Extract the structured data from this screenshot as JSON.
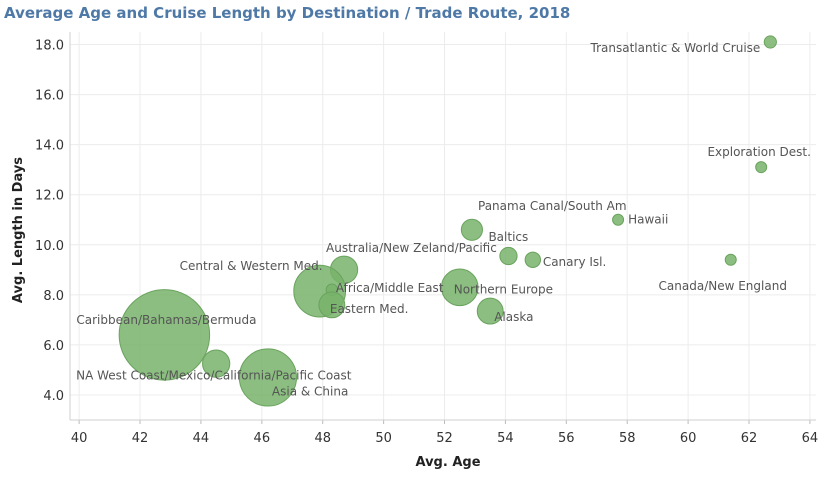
{
  "chart_data": {
    "type": "scatter",
    "title": "Average Age and Cruise Length by Destination / Trade Route, 2018",
    "xlabel": "Avg. Age",
    "ylabel": "Avg. Length in Days",
    "xlim": [
      39.7,
      64.2
    ],
    "ylim": [
      3.0,
      18.5
    ],
    "x_ticks": [
      40,
      42,
      44,
      46,
      48,
      50,
      52,
      54,
      56,
      58,
      60,
      62,
      64
    ],
    "y_ticks": [
      4.0,
      6.0,
      8.0,
      10.0,
      12.0,
      14.0,
      16.0,
      18.0
    ],
    "grid": true,
    "marker_color": "#77b36a",
    "points": [
      {
        "label": "Transatlantic & World Cruise",
        "x": 62.7,
        "y": 18.1,
        "size": 1.0
      },
      {
        "label": "Exploration Dest.",
        "x": 62.4,
        "y": 13.1,
        "size": 0.6
      },
      {
        "label": "Hawaii",
        "x": 57.7,
        "y": 11.0,
        "size": 0.8
      },
      {
        "label": "Panama Canal/South Am",
        "x": 52.9,
        "y": 10.6,
        "size": 3.0
      },
      {
        "label": "Baltics",
        "x": 54.1,
        "y": 9.55,
        "size": 2.0
      },
      {
        "label": "Canary Isl.",
        "x": 54.9,
        "y": 9.4,
        "size": 1.6
      },
      {
        "label": "Canada/New England",
        "x": 61.4,
        "y": 9.4,
        "size": 0.8
      },
      {
        "label": "Australia/New Zeland/Pacific",
        "x": 48.7,
        "y": 9.0,
        "size": 5.0
      },
      {
        "label": "Central & Western Med.",
        "x": 47.9,
        "y": 8.15,
        "size": 18.0
      },
      {
        "label": "Africa/Middle East",
        "x": 48.3,
        "y": 8.2,
        "size": 0.9
      },
      {
        "label": "Northern Europe",
        "x": 52.5,
        "y": 8.3,
        "size": 9.0
      },
      {
        "label": "Eastern Med.",
        "x": 48.3,
        "y": 7.6,
        "size": 4.5
      },
      {
        "label": "Alaska",
        "x": 53.5,
        "y": 7.35,
        "size": 4.5
      },
      {
        "label": "Caribbean/Bahamas/Bermuda",
        "x": 42.8,
        "y": 6.4,
        "size": 55.0
      },
      {
        "label": "NA West Coast/Mexico/California/Pacific Coast",
        "x": 44.5,
        "y": 5.25,
        "size": 5.0
      },
      {
        "label": "Asia & China",
        "x": 46.2,
        "y": 4.7,
        "size": 22.0
      }
    ]
  }
}
